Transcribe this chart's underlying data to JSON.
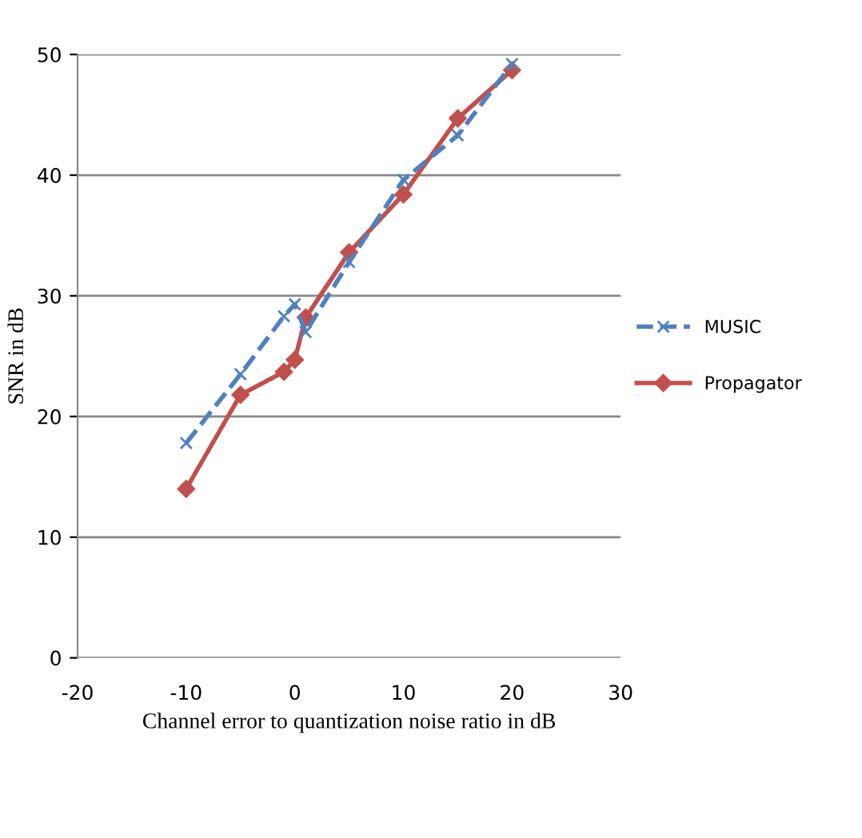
{
  "chart_data": {
    "type": "line",
    "xlabel": "Channel error to quantization noise ratio in dB",
    "ylabel": "SNR in dB",
    "xlim": [
      -20,
      30
    ],
    "xticks": [
      -20,
      -10,
      0,
      10,
      20,
      30
    ],
    "ylim": [
      0,
      50
    ],
    "yticks": [
      0,
      10,
      20,
      30,
      40,
      50
    ],
    "grid": "y",
    "legend": "right",
    "series": [
      {
        "name": "MUSIC",
        "color": "#4f81bd",
        "marker": "cross",
        "line_style": "dashed",
        "x": [
          -10,
          -5,
          -1,
          0,
          1,
          5,
          10,
          15,
          20
        ],
        "values": [
          17.8,
          23.5,
          28.3,
          29.3,
          27.0,
          32.8,
          39.6,
          43.3,
          49.2
        ]
      },
      {
        "name": "Propagator",
        "color": "#c0504d",
        "marker": "diamond",
        "line_style": "solid",
        "x": [
          -10,
          -5,
          -1,
          0,
          1,
          5,
          10,
          15,
          20
        ],
        "values": [
          14.0,
          21.8,
          23.7,
          24.7,
          28.2,
          33.6,
          38.4,
          44.7,
          48.7
        ]
      }
    ]
  }
}
